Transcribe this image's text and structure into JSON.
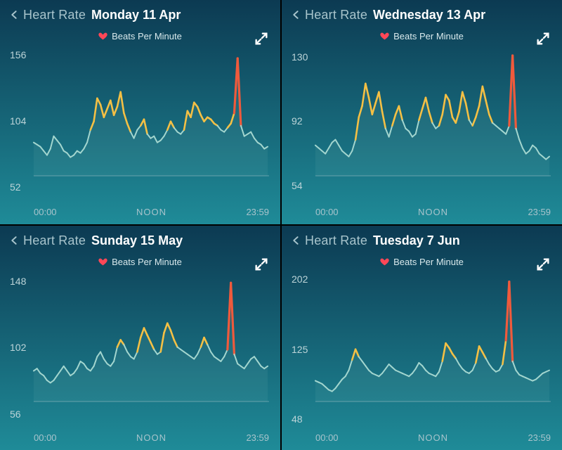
{
  "shared": {
    "header_label": "Heart Rate",
    "sub_label": "Beats Per Minute",
    "x_ticks": [
      "00:00",
      "NOON",
      "23:59"
    ],
    "bg_gradient": [
      "#0c3a52",
      "#1f8b98"
    ],
    "header_color": "#a8c4cc",
    "date_color": "#ffffff",
    "tick_color": "#a8c4cc",
    "series_line_color": "#a3d6cf",
    "series_mid_color": "#f5c044",
    "series_high_color": "#ef5a3c",
    "heart_color": "#ff4757",
    "expand_color": "#ffffff"
  },
  "panels": [
    {
      "date": "Monday 11 Apr",
      "y_ticks": [
        52,
        104,
        156
      ],
      "threshold_mid": 90,
      "threshold_high": 130,
      "ymin": 40,
      "ymax": 160,
      "data": [
        72,
        70,
        68,
        64,
        60,
        66,
        78,
        74,
        70,
        64,
        62,
        58,
        60,
        64,
        62,
        66,
        72,
        84,
        92,
        114,
        108,
        96,
        104,
        112,
        98,
        106,
        120,
        100,
        90,
        82,
        76,
        84,
        88,
        94,
        80,
        76,
        78,
        72,
        74,
        78,
        84,
        92,
        86,
        82,
        80,
        84,
        102,
        96,
        110,
        106,
        98,
        92,
        96,
        94,
        90,
        88,
        84,
        82,
        86,
        90,
        100,
        152,
        88,
        78,
        80,
        82,
        76,
        72,
        70,
        66,
        68
      ]
    },
    {
      "date": "Wednesday 13 Apr",
      "y_ticks": [
        54,
        92,
        130
      ],
      "threshold_mid": 85,
      "threshold_high": 118,
      "ymin": 44,
      "ymax": 134,
      "data": [
        66,
        64,
        62,
        60,
        64,
        68,
        70,
        66,
        62,
        60,
        58,
        62,
        70,
        86,
        94,
        110,
        100,
        88,
        96,
        104,
        90,
        78,
        72,
        80,
        88,
        94,
        84,
        78,
        76,
        72,
        74,
        84,
        92,
        100,
        90,
        82,
        78,
        80,
        88,
        102,
        98,
        86,
        82,
        90,
        104,
        96,
        84,
        80,
        86,
        94,
        108,
        98,
        88,
        82,
        80,
        78,
        76,
        74,
        80,
        130,
        78,
        70,
        64,
        60,
        62,
        66,
        64,
        60,
        58,
        56,
        58
      ]
    },
    {
      "date": "Sunday 15 May",
      "y_ticks": [
        56,
        102,
        148
      ],
      "threshold_mid": 95,
      "threshold_high": 128,
      "ymin": 46,
      "ymax": 152,
      "data": [
        72,
        74,
        70,
        68,
        64,
        62,
        64,
        68,
        72,
        76,
        72,
        68,
        70,
        74,
        80,
        78,
        74,
        72,
        76,
        84,
        88,
        82,
        78,
        76,
        80,
        92,
        98,
        94,
        88,
        84,
        82,
        88,
        100,
        108,
        102,
        96,
        90,
        86,
        88,
        104,
        112,
        106,
        98,
        92,
        90,
        88,
        86,
        84,
        82,
        86,
        92,
        100,
        94,
        88,
        84,
        82,
        80,
        84,
        90,
        146,
        86,
        78,
        76,
        74,
        78,
        82,
        84,
        80,
        76,
        74,
        76
      ]
    },
    {
      "date": "Tuesday 7 Jun",
      "y_ticks": [
        48,
        125,
        202
      ],
      "threshold_mid": 100,
      "threshold_high": 160,
      "ymin": 38,
      "ymax": 206,
      "data": [
        66,
        64,
        62,
        58,
        54,
        52,
        56,
        62,
        68,
        72,
        80,
        94,
        108,
        98,
        92,
        86,
        80,
        76,
        74,
        72,
        76,
        82,
        88,
        84,
        80,
        78,
        76,
        74,
        72,
        76,
        82,
        90,
        86,
        80,
        76,
        74,
        72,
        78,
        92,
        116,
        110,
        102,
        96,
        88,
        82,
        78,
        76,
        80,
        90,
        112,
        104,
        96,
        88,
        82,
        78,
        80,
        88,
        120,
        198,
        92,
        80,
        74,
        72,
        70,
        68,
        66,
        68,
        72,
        76,
        78,
        80
      ]
    }
  ]
}
